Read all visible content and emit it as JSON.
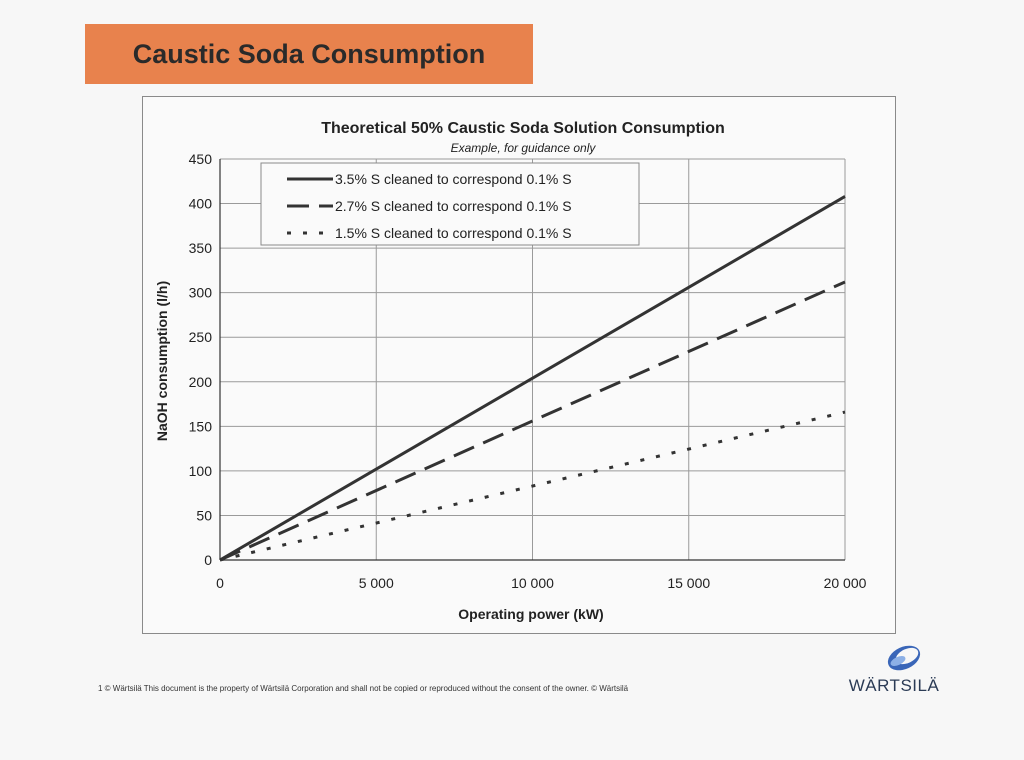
{
  "page": {
    "banner_title": "Caustic Soda Consumption",
    "footer_note": "1   © Wärtsilä  This document is the property of Wärtsilä Corporation and shall not be copied or reproduced without the consent of the owner.    © Wärtsilä",
    "brand_name": "WÄRTSILÄ",
    "banner_color": "#e8824d"
  },
  "chart_data": {
    "type": "line",
    "title": "Theoretical 50% Caustic Soda Solution Consumption",
    "subtitle": "Example, for guidance only",
    "xlabel": "Operating power (kW)",
    "ylabel": "NaOH consumption (l/h)",
    "xlim": [
      0,
      20000
    ],
    "ylim": [
      0,
      450
    ],
    "x_ticks": [
      0,
      5000,
      10000,
      15000,
      20000
    ],
    "x_tick_labels": [
      "0",
      "5 000",
      "10 000",
      "15 000",
      "20 000"
    ],
    "y_ticks": [
      0,
      50,
      100,
      150,
      200,
      250,
      300,
      350,
      400,
      450
    ],
    "y_tick_labels": [
      "0",
      "50",
      "100",
      "150",
      "200",
      "250",
      "300",
      "350",
      "400",
      "450"
    ],
    "grid": true,
    "legend_position": "top-left",
    "series": [
      {
        "name": "3.5% S cleaned to correspond 0.1% S",
        "style": "solid",
        "x": [
          0,
          20000
        ],
        "y": [
          0,
          408
        ]
      },
      {
        "name": "2.7% S cleaned to correspond 0.1% S",
        "style": "dashed",
        "x": [
          0,
          20000
        ],
        "y": [
          0,
          312
        ]
      },
      {
        "name": "1.5% S cleaned to correspond 0.1% S",
        "style": "dotted",
        "x": [
          0,
          20000
        ],
        "y": [
          0,
          166
        ]
      }
    ]
  }
}
